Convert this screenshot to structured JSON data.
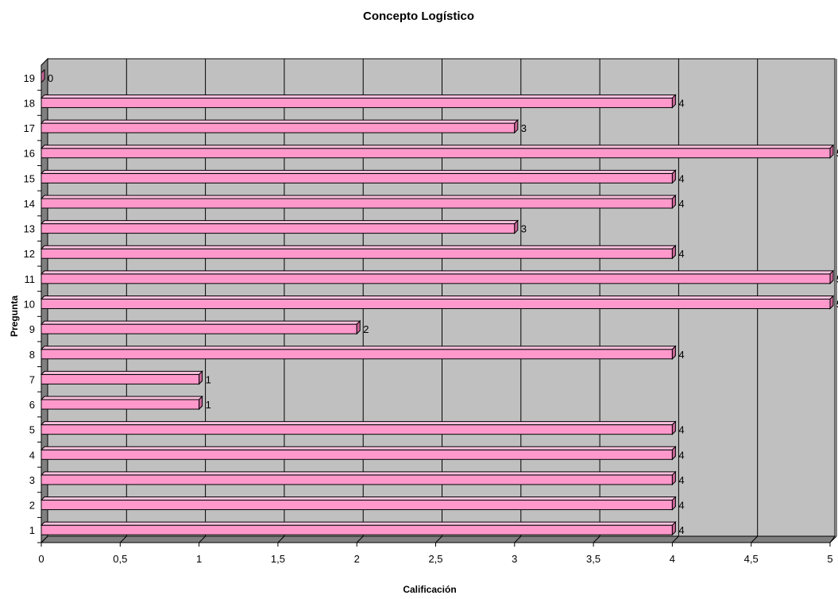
{
  "chart_data": {
    "type": "bar",
    "orientation": "horizontal",
    "title": "Concepto Logístico",
    "xlabel": "Calificación",
    "ylabel": "Pregunta",
    "categories": [
      "1",
      "2",
      "3",
      "4",
      "5",
      "6",
      "7",
      "8",
      "9",
      "10",
      "11",
      "12",
      "13",
      "14",
      "15",
      "16",
      "17",
      "18",
      "19"
    ],
    "values": [
      4,
      4,
      4,
      4,
      4,
      1,
      1,
      4,
      2,
      5,
      5,
      4,
      3,
      4,
      4,
      5,
      3,
      4,
      0
    ],
    "xlim": [
      0,
      5
    ],
    "x_ticks": [
      "0",
      "0,5",
      "1",
      "1,5",
      "2",
      "2,5",
      "3",
      "3,5",
      "4",
      "4,5",
      "5"
    ],
    "grid": true,
    "legend": "none",
    "colors": {
      "bar_front": "#ff99cc",
      "bar_top": "#ffc2e0",
      "bar_side": "#cc6699",
      "plot_back": "#c0c0c0",
      "plot_floor": "#808080",
      "gridline": "#000000"
    }
  }
}
